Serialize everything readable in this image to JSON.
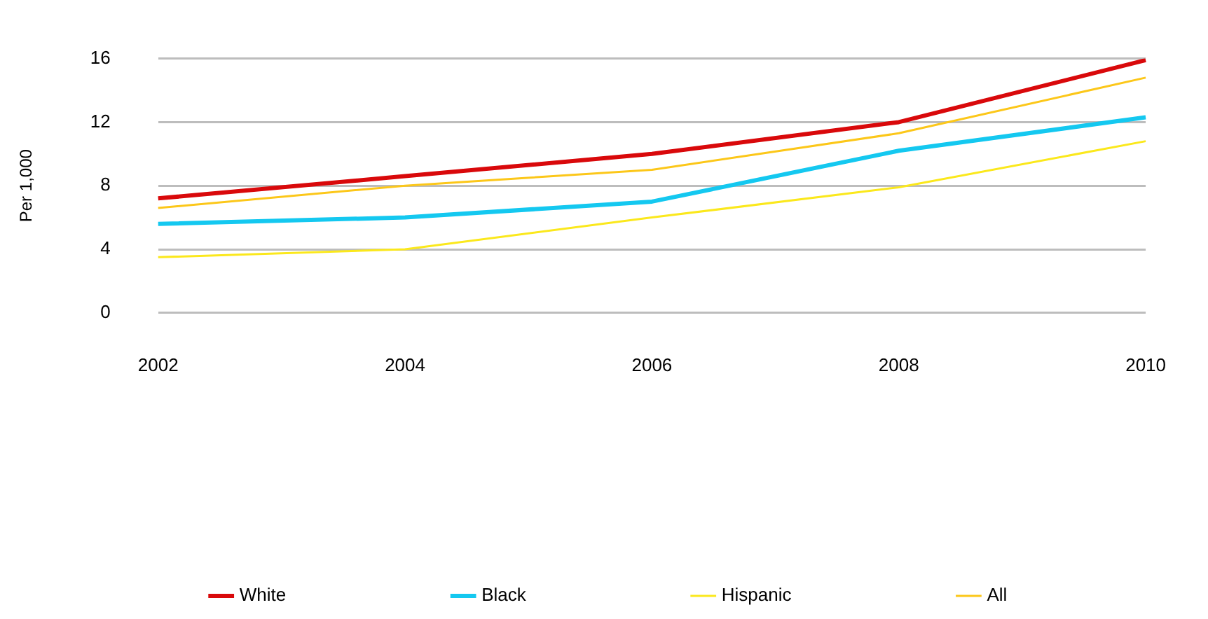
{
  "chart_data": {
    "type": "line",
    "ylabel": "Per 1,000",
    "categories": [
      "2002",
      "2004",
      "2006",
      "2008",
      "2010"
    ],
    "series": [
      {
        "name": "White",
        "color": "#d9090b",
        "values": [
          7.2,
          8.6,
          10,
          12,
          15.9
        ]
      },
      {
        "name": "Black",
        "color": "#14c8f0",
        "values": [
          5.6,
          6,
          7,
          10.2,
          12.3
        ]
      },
      {
        "name": "Hispanic",
        "color": "#fbe81c",
        "values": [
          3.5,
          4,
          6,
          7.9,
          10.8
        ]
      },
      {
        "name": "All",
        "color": "#fcc719",
        "values": [
          6.6,
          8,
          9,
          11.3,
          14.8
        ]
      }
    ],
    "ylim": [
      0,
      16
    ],
    "yticks": [
      0,
      4,
      8,
      12,
      16
    ],
    "grid": "y",
    "legend": "bottom",
    "marker": "none",
    "line_style": "solid"
  }
}
